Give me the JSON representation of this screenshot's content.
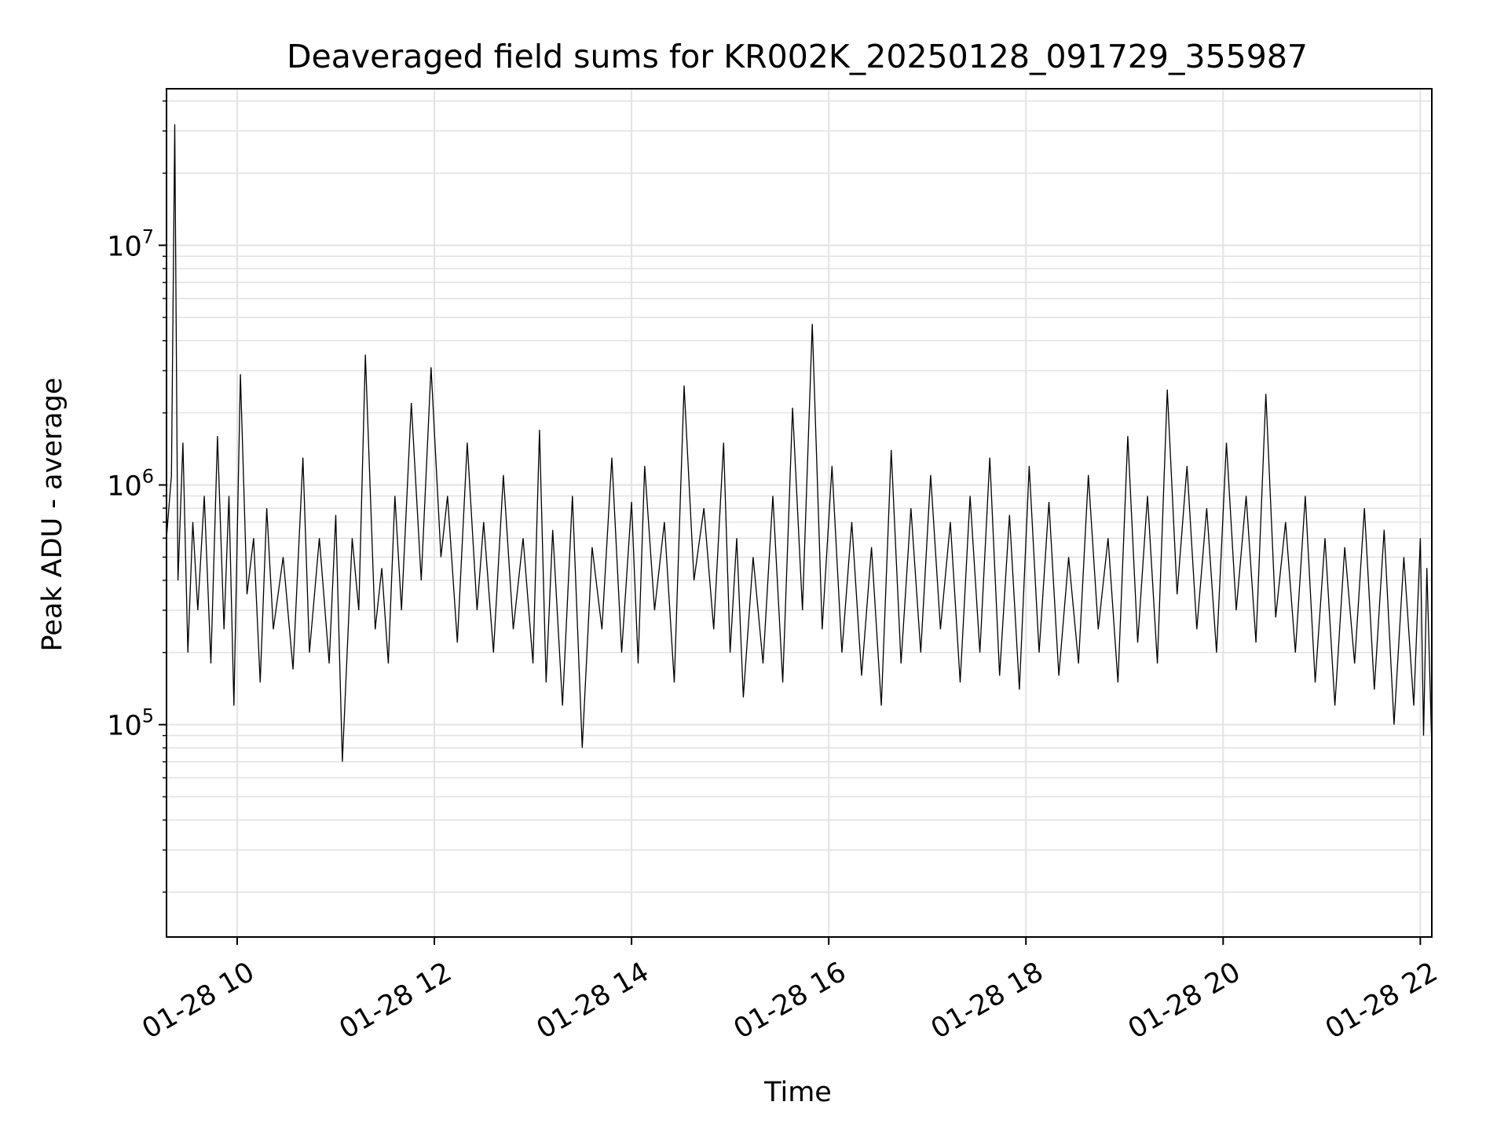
{
  "chart_data": {
    "type": "line",
    "title": "Deaveraged field sums for KR002K_20250128_091729_355987",
    "xlabel": "Time",
    "ylabel": "Peak ADU - average",
    "y_scale": "log",
    "ylim": [
      13000,
      45000000
    ],
    "xlim": [
      "01-28 09:17",
      "01-28 22:07"
    ],
    "grid": true,
    "x_ticks": [
      "01-28 10",
      "01-28 12",
      "01-28 14",
      "01-28 16",
      "01-28 18",
      "01-28 20",
      "01-28 22"
    ],
    "y_ticks": [
      {
        "base": "10",
        "exp": "5",
        "value": 100000
      },
      {
        "base": "10",
        "exp": "6",
        "value": 1000000
      },
      {
        "base": "10",
        "exp": "7",
        "value": 10000000
      }
    ],
    "line_color": "#000000",
    "series": [
      {
        "x": [
          "01-28 09:17",
          "01-28 09:20",
          "01-28 09:22",
          "01-28 09:24",
          "01-28 09:27",
          "01-28 09:30",
          "01-28 09:33",
          "01-28 09:36",
          "01-28 09:40",
          "01-28 09:44",
          "01-28 09:48",
          "01-28 09:52",
          "01-28 09:55",
          "01-28 09:58",
          "01-28 10:02",
          "01-28 10:06",
          "01-28 10:10",
          "01-28 10:14",
          "01-28 10:18",
          "01-28 10:22",
          "01-28 10:28",
          "01-28 10:34",
          "01-28 10:40",
          "01-28 10:44",
          "01-28 10:50",
          "01-28 10:56",
          "01-28 11:00",
          "01-28 11:04",
          "01-28 11:10",
          "01-28 11:14",
          "01-28 11:18",
          "01-28 11:24",
          "01-28 11:28",
          "01-28 11:32",
          "01-28 11:36",
          "01-28 11:40",
          "01-28 11:46",
          "01-28 11:52",
          "01-28 11:58",
          "01-28 12:04",
          "01-28 12:08",
          "01-28 12:14",
          "01-28 12:20",
          "01-28 12:26",
          "01-28 12:30",
          "01-28 12:36",
          "01-28 12:42",
          "01-28 12:48",
          "01-28 12:54",
          "01-28 13:00",
          "01-28 13:04",
          "01-28 13:08",
          "01-28 13:12",
          "01-28 13:18",
          "01-28 13:24",
          "01-28 13:30",
          "01-28 13:36",
          "01-28 13:42",
          "01-28 13:48",
          "01-28 13:54",
          "01-28 14:00",
          "01-28 14:04",
          "01-28 14:08",
          "01-28 14:14",
          "01-28 14:20",
          "01-28 14:26",
          "01-28 14:32",
          "01-28 14:38",
          "01-28 14:44",
          "01-28 14:50",
          "01-28 14:56",
          "01-28 15:00",
          "01-28 15:04",
          "01-28 15:08",
          "01-28 15:14",
          "01-28 15:20",
          "01-28 15:26",
          "01-28 15:32",
          "01-28 15:38",
          "01-28 15:44",
          "01-28 15:50",
          "01-28 15:56",
          "01-28 16:02",
          "01-28 16:08",
          "01-28 16:14",
          "01-28 16:20",
          "01-28 16:26",
          "01-28 16:32",
          "01-28 16:38",
          "01-28 16:44",
          "01-28 16:50",
          "01-28 16:56",
          "01-28 17:02",
          "01-28 17:08",
          "01-28 17:14",
          "01-28 17:20",
          "01-28 17:26",
          "01-28 17:32",
          "01-28 17:38",
          "01-28 17:44",
          "01-28 17:50",
          "01-28 17:56",
          "01-28 18:02",
          "01-28 18:08",
          "01-28 18:14",
          "01-28 18:20",
          "01-28 18:26",
          "01-28 18:32",
          "01-28 18:38",
          "01-28 18:44",
          "01-28 18:50",
          "01-28 18:56",
          "01-28 19:02",
          "01-28 19:08",
          "01-28 19:14",
          "01-28 19:20",
          "01-28 19:26",
          "01-28 19:32",
          "01-28 19:38",
          "01-28 19:44",
          "01-28 19:50",
          "01-28 19:56",
          "01-28 20:02",
          "01-28 20:08",
          "01-28 20:14",
          "01-28 20:20",
          "01-28 20:26",
          "01-28 20:32",
          "01-28 20:38",
          "01-28 20:44",
          "01-28 20:50",
          "01-28 20:56",
          "01-28 21:02",
          "01-28 21:08",
          "01-28 21:14",
          "01-28 21:20",
          "01-28 21:26",
          "01-28 21:32",
          "01-28 21:38",
          "01-28 21:44",
          "01-28 21:50",
          "01-28 21:56",
          "01-28 22:00",
          "01-28 22:02",
          "01-28 22:04",
          "01-28 22:07"
        ],
        "y": [
          600000,
          1100000,
          32000000,
          400000,
          1500000,
          200000,
          700000,
          300000,
          900000,
          180000,
          1600000,
          250000,
          900000,
          120000,
          2900000,
          350000,
          600000,
          150000,
          800000,
          250000,
          500000,
          170000,
          1300000,
          200000,
          600000,
          180000,
          750000,
          70000,
          600000,
          300000,
          3500000,
          250000,
          450000,
          180000,
          900000,
          300000,
          2200000,
          400000,
          3100000,
          500000,
          900000,
          220000,
          1500000,
          300000,
          700000,
          200000,
          1100000,
          250000,
          600000,
          180000,
          1700000,
          150000,
          650000,
          120000,
          900000,
          80000,
          550000,
          250000,
          1300000,
          200000,
          850000,
          180000,
          1200000,
          300000,
          700000,
          150000,
          2600000,
          400000,
          800000,
          250000,
          1500000,
          200000,
          600000,
          130000,
          500000,
          180000,
          900000,
          150000,
          2100000,
          300000,
          4700000,
          250000,
          1200000,
          200000,
          700000,
          160000,
          550000,
          120000,
          1400000,
          180000,
          800000,
          200000,
          1100000,
          250000,
          700000,
          150000,
          900000,
          200000,
          1300000,
          160000,
          750000,
          140000,
          1200000,
          200000,
          850000,
          160000,
          500000,
          180000,
          1100000,
          250000,
          600000,
          150000,
          1600000,
          220000,
          900000,
          180000,
          2500000,
          350000,
          1200000,
          250000,
          800000,
          200000,
          1500000,
          300000,
          900000,
          220000,
          2400000,
          280000,
          700000,
          200000,
          900000,
          150000,
          600000,
          120000,
          550000,
          180000,
          800000,
          140000,
          650000,
          100000,
          500000,
          120000,
          600000,
          90000,
          450000,
          80000
        ]
      }
    ]
  }
}
